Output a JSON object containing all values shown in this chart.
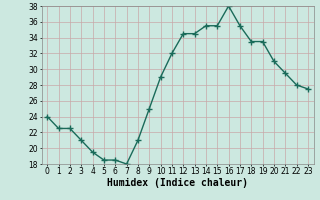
{
  "x": [
    0,
    1,
    2,
    3,
    4,
    5,
    6,
    7,
    8,
    9,
    10,
    11,
    12,
    13,
    14,
    15,
    16,
    17,
    18,
    19,
    20,
    21,
    22,
    23
  ],
  "y": [
    24,
    22.5,
    22.5,
    21,
    19.5,
    18.5,
    18.5,
    18,
    21,
    25,
    29,
    32,
    34.5,
    34.5,
    35.5,
    35.5,
    38,
    35.5,
    33.5,
    33.5,
    31,
    29.5,
    28,
    27.5
  ],
  "line_color": "#1a6b5a",
  "marker_color": "#1a6b5a",
  "bg_color": "#cce8e0",
  "grid_color": "#b0d8d0",
  "xlabel": "Humidex (Indice chaleur)",
  "ylim": [
    18,
    38
  ],
  "xlim": [
    -0.5,
    23.5
  ],
  "yticks": [
    18,
    20,
    22,
    24,
    26,
    28,
    30,
    32,
    34,
    36,
    38
  ],
  "xtick_labels": [
    "0",
    "1",
    "2",
    "3",
    "4",
    "5",
    "6",
    "7",
    "8",
    "9",
    "10",
    "11",
    "12",
    "13",
    "14",
    "15",
    "16",
    "17",
    "18",
    "19",
    "20",
    "21",
    "22",
    "23"
  ],
  "xlabel_fontsize": 7,
  "tick_fontsize": 5.5,
  "marker_size": 2,
  "line_width": 1.0
}
